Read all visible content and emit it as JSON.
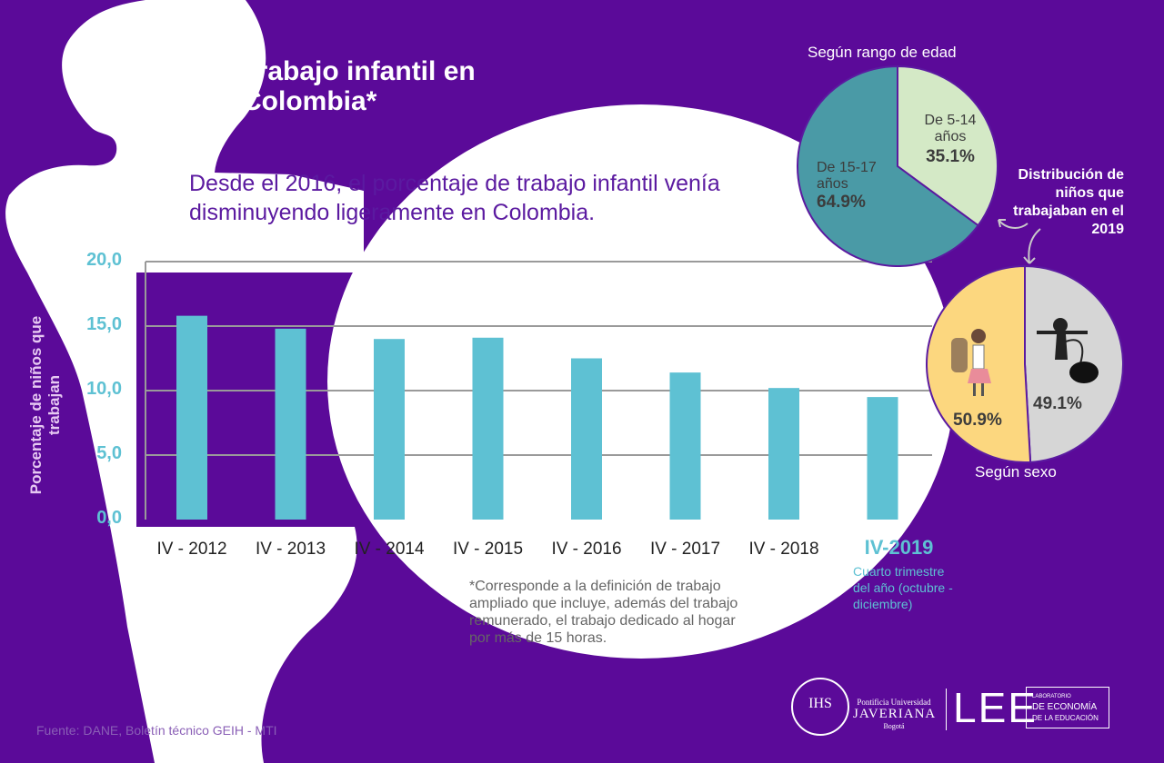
{
  "header": {
    "title_line1": "Trabajo infantil en",
    "title_line2": "Colombia*",
    "subtitle": "Desde el 2016, el porcentaje de trabajo infantil venía disminuyendo ligeramente en Colombia."
  },
  "chart_data": [
    {
      "type": "bar",
      "ylabel": "Porcentaje de niños que trabajan",
      "ylim": [
        0,
        20
      ],
      "yticks": [
        "0,0",
        "5,0",
        "10,0",
        "15,0",
        "20,0"
      ],
      "categories": [
        "IV - 2012",
        "IV - 2013",
        "IV - 2014",
        "IV - 2015",
        "IV - 2016",
        "IV - 2017",
        "IV - 2018",
        "IV-2019"
      ],
      "values": [
        15.8,
        14.8,
        14.0,
        14.1,
        12.5,
        11.4,
        10.2,
        9.5
      ],
      "highlight_index": 7,
      "highlight_note": "Cuarto trimestre del año (octubre - diciembre)",
      "grid": true,
      "colors": {
        "bar": "#5ec1d3",
        "grid": "#9a9a9a"
      }
    },
    {
      "type": "pie",
      "title": "Según rango de edad",
      "slices": [
        {
          "label_line1": "De 5-14",
          "label_line2": "años",
          "value": 35.1,
          "display": "35.1%",
          "color": "#d4e9c6"
        },
        {
          "label_line1": "De 15-17",
          "label_line2": "años",
          "value": 64.9,
          "display": "64.9%",
          "color": "#4a9aa6"
        }
      ]
    },
    {
      "type": "pie",
      "title": "Según sexo",
      "slices": [
        {
          "value": 49.1,
          "display": "49.1%",
          "color": "#d6d6d6",
          "icon": "boy-icon"
        },
        {
          "value": 50.9,
          "display": "50.9%",
          "color": "#fcd77f",
          "icon": "girl-icon"
        }
      ]
    }
  ],
  "distribution_label": "Distribución de niños que trabajaban en el 2019",
  "footnote": "*Corresponde a la definición de trabajo ampliado que incluye, además del trabajo remunerado, el trabajo dedicado al hogar por más de 15 horas.",
  "source": "Fuente: DANE, Boletín técnico GEIH - MTI",
  "logos": {
    "javeriana_seal": "IHS",
    "javeriana_line1": "Pontificia Universidad",
    "javeriana_line2": "JAVERIANA",
    "javeriana_line3": "Bogotá",
    "lee": "LEE",
    "lee_line1": "LABORATORIO",
    "lee_line2": "DE ECONOMÍA",
    "lee_line3": "DE LA EDUCACIÓN"
  },
  "colors": {
    "background": "#5b0a99",
    "silhouette": "#ffffff",
    "accent": "#5ec1d3"
  }
}
